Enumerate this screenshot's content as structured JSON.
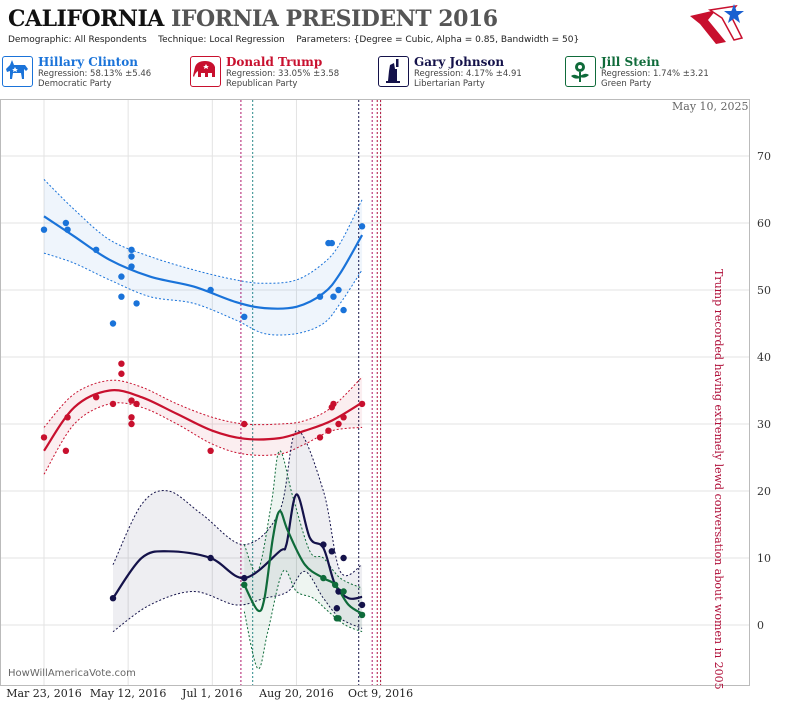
{
  "header": {
    "title_part1": "CALIFORNIA",
    "title_part2": "IFORNIA PRESIDENT 2016",
    "demographic_label": "Demographic:",
    "demographic_value": "All Respondents",
    "technique_label": "Technique:",
    "technique_value": "Local Regression",
    "parameters_label": "Parameters:",
    "parameters_value": "{Degree = Cubic, Alpha = 0.85, Bandwidth = 50}"
  },
  "candidates": [
    {
      "name": "Hillary Clinton",
      "regression": "Regression: 58.13% ±5.46",
      "party": "Democratic Party",
      "color": "#1a73d9",
      "icon": "donkey-icon"
    },
    {
      "name": "Donald Trump",
      "regression": "Regression: 33.05% ±3.58",
      "party": "Republican Party",
      "color": "#c8102e",
      "icon": "elephant-icon"
    },
    {
      "name": "Gary Johnson",
      "regression": "Regression: 4.17% ±4.91",
      "party": "Libertarian Party",
      "color": "#14124a",
      "icon": "statue-of-liberty-icon"
    },
    {
      "name": "Jill Stein",
      "regression": "Regression: 1.74% ±3.21",
      "party": "Green Party",
      "color": "#0f6b3a",
      "icon": "flower-icon"
    }
  ],
  "footer": {
    "site": "HowWillAmericaVote.com"
  },
  "date_stamp": "May 10, 2025",
  "chart_data": {
    "type": "scatter",
    "x_ticks": [
      "Mar 23, 2016",
      "May 12, 2016",
      "Jul 1, 2016",
      "Aug 20, 2016",
      "Oct 9, 2016"
    ],
    "y_ticks": [
      0,
      10,
      20,
      30,
      40,
      50,
      60,
      70
    ],
    "ylim": [
      -5,
      80
    ],
    "grid": true,
    "annotations": [
      {
        "date": "2016-10-07",
        "text": "Trump recorded having extremely lewd conversation about women in 2005"
      }
    ],
    "series": [
      {
        "name": "Hillary Clinton",
        "color": "#1a73d9",
        "points": [
          [
            "2016-03-23",
            59
          ],
          [
            "2016-04-05",
            60
          ],
          [
            "2016-04-06",
            59
          ],
          [
            "2016-04-23",
            56
          ],
          [
            "2016-05-03",
            45
          ],
          [
            "2016-05-08",
            52
          ],
          [
            "2016-05-08",
            49
          ],
          [
            "2016-05-14",
            56
          ],
          [
            "2016-05-14",
            55
          ],
          [
            "2016-05-14",
            53.5
          ],
          [
            "2016-05-17",
            48
          ],
          [
            "2016-06-30",
            50
          ],
          [
            "2016-07-20",
            46
          ],
          [
            "2016-09-03",
            49
          ],
          [
            "2016-09-08",
            57
          ],
          [
            "2016-09-10",
            57
          ],
          [
            "2016-09-11",
            49
          ],
          [
            "2016-09-14",
            50
          ],
          [
            "2016-09-17",
            47
          ],
          [
            "2016-09-28",
            59.5
          ]
        ],
        "fit": [
          [
            "2016-03-23",
            61
          ],
          [
            "2016-04-10",
            58
          ],
          [
            "2016-05-01",
            54.5
          ],
          [
            "2016-05-25",
            52
          ],
          [
            "2016-06-20",
            50.5
          ],
          [
            "2016-07-15",
            48.2
          ],
          [
            "2016-08-01",
            47.3
          ],
          [
            "2016-08-20",
            47.5
          ],
          [
            "2016-09-05",
            49.5
          ],
          [
            "2016-09-15",
            52.5
          ],
          [
            "2016-09-28",
            58.2
          ]
        ],
        "upper": [
          [
            "2016-03-23",
            66.5
          ],
          [
            "2016-04-10",
            62
          ],
          [
            "2016-05-01",
            57.5
          ],
          [
            "2016-05-25",
            55
          ],
          [
            "2016-06-20",
            53
          ],
          [
            "2016-07-15",
            51.5
          ],
          [
            "2016-08-01",
            51
          ],
          [
            "2016-08-20",
            51.5
          ],
          [
            "2016-09-05",
            54
          ],
          [
            "2016-09-15",
            57
          ],
          [
            "2016-09-28",
            63.5
          ]
        ],
        "lower": [
          [
            "2016-03-23",
            55.5
          ],
          [
            "2016-04-10",
            54
          ],
          [
            "2016-05-01",
            51.5
          ],
          [
            "2016-05-25",
            49
          ],
          [
            "2016-06-20",
            48
          ],
          [
            "2016-07-15",
            45.5
          ],
          [
            "2016-08-01",
            43.5
          ],
          [
            "2016-08-20",
            43.5
          ],
          [
            "2016-09-05",
            45
          ],
          [
            "2016-09-15",
            48
          ],
          [
            "2016-09-28",
            53
          ]
        ]
      },
      {
        "name": "Donald Trump",
        "color": "#c8102e",
        "points": [
          [
            "2016-03-23",
            28
          ],
          [
            "2016-04-05",
            26
          ],
          [
            "2016-04-06",
            31
          ],
          [
            "2016-04-23",
            34
          ],
          [
            "2016-05-03",
            33
          ],
          [
            "2016-05-08",
            39
          ],
          [
            "2016-05-08",
            37.5
          ],
          [
            "2016-05-14",
            33.5
          ],
          [
            "2016-05-14",
            31
          ],
          [
            "2016-05-14",
            30
          ],
          [
            "2016-05-17",
            33
          ],
          [
            "2016-06-30",
            26
          ],
          [
            "2016-07-20",
            30
          ],
          [
            "2016-09-03",
            28
          ],
          [
            "2016-09-08",
            29
          ],
          [
            "2016-09-10",
            32.5
          ],
          [
            "2016-09-11",
            33
          ],
          [
            "2016-09-14",
            30
          ],
          [
            "2016-09-17",
            31
          ],
          [
            "2016-09-28",
            33
          ]
        ],
        "fit": [
          [
            "2016-03-23",
            26
          ],
          [
            "2016-04-10",
            32.5
          ],
          [
            "2016-05-01",
            35
          ],
          [
            "2016-05-20",
            34
          ],
          [
            "2016-06-10",
            31.5
          ],
          [
            "2016-07-01",
            29
          ],
          [
            "2016-07-20",
            27.8
          ],
          [
            "2016-08-10",
            27.9
          ],
          [
            "2016-08-25",
            29
          ],
          [
            "2016-09-10",
            30.5
          ],
          [
            "2016-09-28",
            33.2
          ]
        ],
        "upper": [
          [
            "2016-03-23",
            29.5
          ],
          [
            "2016-04-10",
            34.5
          ],
          [
            "2016-05-01",
            36.5
          ],
          [
            "2016-05-20",
            35.5
          ],
          [
            "2016-06-10",
            33
          ],
          [
            "2016-07-01",
            31
          ],
          [
            "2016-07-20",
            30
          ],
          [
            "2016-08-10",
            30
          ],
          [
            "2016-08-25",
            30.5
          ],
          [
            "2016-09-10",
            32.5
          ],
          [
            "2016-09-28",
            37
          ]
        ],
        "lower": [
          [
            "2016-03-23",
            22.5
          ],
          [
            "2016-04-10",
            30
          ],
          [
            "2016-05-01",
            33
          ],
          [
            "2016-05-20",
            32.5
          ],
          [
            "2016-06-10",
            30
          ],
          [
            "2016-07-01",
            27
          ],
          [
            "2016-07-20",
            25.5
          ],
          [
            "2016-08-10",
            25.5
          ],
          [
            "2016-08-25",
            27
          ],
          [
            "2016-09-10",
            29
          ],
          [
            "2016-09-28",
            29.5
          ]
        ]
      },
      {
        "name": "Gary Johnson",
        "color": "#14124a",
        "points": [
          [
            "2016-05-03",
            4
          ],
          [
            "2016-06-30",
            10
          ],
          [
            "2016-07-20",
            7
          ],
          [
            "2016-09-05",
            12
          ],
          [
            "2016-09-10",
            11
          ],
          [
            "2016-09-13",
            2.5
          ],
          [
            "2016-09-14",
            5
          ],
          [
            "2016-09-17",
            10
          ],
          [
            "2016-09-28",
            3
          ]
        ],
        "fit": [
          [
            "2016-05-03",
            4
          ],
          [
            "2016-05-20",
            10
          ],
          [
            "2016-06-05",
            11
          ],
          [
            "2016-06-30",
            10
          ],
          [
            "2016-07-20",
            7
          ],
          [
            "2016-08-10",
            11
          ],
          [
            "2016-08-14",
            12
          ],
          [
            "2016-08-20",
            19.5
          ],
          [
            "2016-08-28",
            13
          ],
          [
            "2016-09-05",
            11.5
          ],
          [
            "2016-09-12",
            6
          ],
          [
            "2016-09-20",
            4
          ],
          [
            "2016-09-28",
            4.2
          ]
        ],
        "upper": [
          [
            "2016-05-03",
            9
          ],
          [
            "2016-05-20",
            18
          ],
          [
            "2016-06-05",
            20
          ],
          [
            "2016-06-25",
            16.5
          ],
          [
            "2016-07-20",
            12
          ],
          [
            "2016-08-10",
            17
          ],
          [
            "2016-08-20",
            29
          ],
          [
            "2016-09-05",
            20
          ],
          [
            "2016-09-15",
            8
          ],
          [
            "2016-09-28",
            9
          ]
        ],
        "lower": [
          [
            "2016-05-03",
            -1
          ],
          [
            "2016-05-25",
            3
          ],
          [
            "2016-06-20",
            5
          ],
          [
            "2016-07-15",
            3
          ],
          [
            "2016-08-01",
            4
          ],
          [
            "2016-08-15",
            5
          ],
          [
            "2016-08-25",
            8
          ],
          [
            "2016-09-05",
            4
          ],
          [
            "2016-09-15",
            1
          ],
          [
            "2016-09-28",
            -0.5
          ]
        ]
      },
      {
        "name": "Jill Stein",
        "color": "#0f6b3a",
        "points": [
          [
            "2016-07-20",
            6
          ],
          [
            "2016-09-05",
            7
          ],
          [
            "2016-09-12",
            6
          ],
          [
            "2016-09-13",
            1
          ],
          [
            "2016-09-14",
            1
          ],
          [
            "2016-09-17",
            5
          ],
          [
            "2016-09-28",
            1.5
          ]
        ],
        "fit": [
          [
            "2016-07-20",
            6
          ],
          [
            "2016-07-28",
            2.2
          ],
          [
            "2016-08-01",
            4
          ],
          [
            "2016-08-06",
            13
          ],
          [
            "2016-08-10",
            17
          ],
          [
            "2016-08-15",
            14
          ],
          [
            "2016-08-25",
            9
          ],
          [
            "2016-09-05",
            7
          ],
          [
            "2016-09-12",
            6
          ],
          [
            "2016-09-20",
            3
          ],
          [
            "2016-09-28",
            1.7
          ]
        ],
        "upper": [
          [
            "2016-07-20",
            12
          ],
          [
            "2016-07-28",
            8
          ],
          [
            "2016-08-05",
            18
          ],
          [
            "2016-08-10",
            26
          ],
          [
            "2016-08-18",
            19
          ],
          [
            "2016-08-28",
            11
          ],
          [
            "2016-09-05",
            10
          ],
          [
            "2016-09-15",
            7
          ],
          [
            "2016-09-28",
            5.5
          ]
        ],
        "lower": [
          [
            "2016-07-20",
            2
          ],
          [
            "2016-07-28",
            -6.5
          ],
          [
            "2016-08-03",
            -1
          ],
          [
            "2016-08-12",
            8
          ],
          [
            "2016-08-20",
            5
          ],
          [
            "2016-08-30",
            4
          ],
          [
            "2016-09-08",
            2
          ],
          [
            "2016-09-18",
            0
          ],
          [
            "2016-09-28",
            -1
          ]
        ]
      }
    ]
  }
}
